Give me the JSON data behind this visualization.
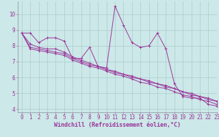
{
  "background_color": "#cce8e8",
  "line_color": "#993399",
  "grid_color": "#aacccc",
  "xlabel": "Windchill (Refroidissement éolien,°C)",
  "xlim": [
    -0.5,
    23
  ],
  "ylim": [
    3.8,
    10.8
  ],
  "yticks": [
    4,
    5,
    6,
    7,
    8,
    9,
    10
  ],
  "xticks": [
    0,
    1,
    2,
    3,
    4,
    5,
    6,
    7,
    8,
    9,
    10,
    11,
    12,
    13,
    14,
    15,
    16,
    17,
    18,
    19,
    20,
    21,
    22,
    23
  ],
  "series": [
    [
      8.8,
      8.8,
      8.2,
      8.5,
      8.5,
      8.3,
      7.2,
      7.2,
      7.9,
      6.7,
      6.6,
      10.5,
      9.3,
      8.2,
      7.9,
      8.0,
      8.8,
      7.8,
      5.6,
      4.8,
      4.7,
      4.7,
      4.3,
      4.2
    ],
    [
      8.8,
      8.1,
      7.9,
      7.8,
      7.8,
      7.6,
      7.3,
      7.1,
      6.9,
      6.7,
      6.5,
      6.4,
      6.2,
      6.1,
      5.9,
      5.8,
      5.6,
      5.5,
      5.3,
      5.1,
      5.0,
      4.8,
      4.7,
      4.5
    ],
    [
      8.8,
      7.9,
      7.8,
      7.7,
      7.6,
      7.5,
      7.2,
      7.0,
      6.8,
      6.7,
      6.5,
      6.3,
      6.2,
      6.0,
      5.9,
      5.7,
      5.6,
      5.4,
      5.3,
      5.1,
      4.9,
      4.8,
      4.6,
      4.5
    ],
    [
      8.8,
      7.8,
      7.7,
      7.6,
      7.5,
      7.4,
      7.1,
      6.9,
      6.7,
      6.6,
      6.4,
      6.2,
      6.1,
      5.9,
      5.7,
      5.6,
      5.4,
      5.3,
      5.1,
      4.9,
      4.8,
      4.6,
      4.5,
      4.3
    ]
  ],
  "marker": "+",
  "markersize": 3,
  "linewidth": 0.7,
  "xlabel_fontsize": 6,
  "tick_fontsize": 5.5,
  "xlabel_color": "#993399",
  "tick_color": "#993399"
}
